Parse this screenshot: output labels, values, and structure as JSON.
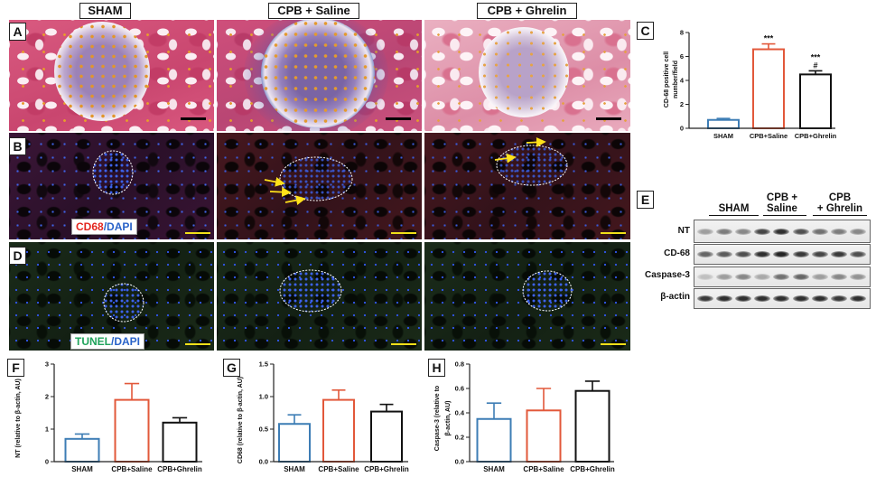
{
  "figure": {
    "columns": [
      "SHAM",
      "CPB + Saline",
      "CPB + Ghrelin"
    ],
    "panel_labels": {
      "a": "A",
      "b": "B",
      "d": "D",
      "e": "E"
    },
    "legend_b": {
      "marker": "CD68",
      "stain": "/DAPI"
    },
    "legend_d": {
      "marker": "TUNEL",
      "stain": "/DAPI"
    }
  },
  "western_blot": {
    "groups": [
      [
        "SHAM"
      ],
      [
        "CPB +",
        "Saline"
      ],
      [
        "CPB",
        "+ Ghrelin"
      ]
    ],
    "rows": [
      "NT",
      "CD-68",
      "Caspase-3",
      "β-actin"
    ]
  },
  "colors": {
    "bars": [
      "#3d7db5",
      "#e2583a",
      "#111111"
    ],
    "cd68": "#e3261f",
    "dapi": "#2a63c9",
    "tunel": "#20a35b"
  },
  "chart_data": [
    {
      "panel": "C",
      "type": "bar",
      "categories": [
        "SHAM",
        "CPB+Saline",
        "CPB+Ghrelin"
      ],
      "values": [
        0.7,
        6.6,
        4.5
      ],
      "errors": [
        0.12,
        0.45,
        0.3
      ],
      "ylabel_lines": [
        "CD-68 positive cell",
        "number/field"
      ],
      "ylim": [
        0,
        8
      ],
      "yticks": [
        0,
        2,
        4,
        6,
        8
      ],
      "ytick_labels": [
        "0",
        "2",
        "4",
        "6",
        "8"
      ],
      "annotations": [
        [],
        [
          "***"
        ],
        [
          "***",
          "#"
        ]
      ],
      "grid": false
    },
    {
      "panel": "F",
      "type": "bar",
      "categories": [
        "SHAM",
        "CPB+Saline",
        "CPB+Ghrelin"
      ],
      "values": [
        0.7,
        1.9,
        1.2
      ],
      "errors": [
        0.15,
        0.5,
        0.15
      ],
      "ylabel_lines": [
        "NT (relative to β-actin, AU)"
      ],
      "ylim": [
        0,
        3
      ],
      "yticks": [
        0,
        1,
        2,
        3
      ],
      "ytick_labels": [
        "0",
        "1",
        "2",
        "3"
      ],
      "grid": false
    },
    {
      "panel": "G",
      "type": "bar",
      "categories": [
        "SHAM",
        "CPB+Saline",
        "CPB+Ghrelin"
      ],
      "values": [
        0.58,
        0.95,
        0.77
      ],
      "errors": [
        0.14,
        0.15,
        0.11
      ],
      "ylabel_lines": [
        "CD68 (relative to β-actin, AU)"
      ],
      "ylim": [
        0,
        1.5
      ],
      "yticks": [
        0,
        0.5,
        1,
        1.5
      ],
      "ytick_labels": [
        "0.0",
        "0.5",
        "1.0",
        "1.5"
      ],
      "grid": false
    },
    {
      "panel": "H",
      "type": "bar",
      "categories": [
        "SHAM",
        "CPB+Saline",
        "CPB+Ghrelin"
      ],
      "values": [
        0.35,
        0.42,
        0.58
      ],
      "errors": [
        0.13,
        0.18,
        0.08
      ],
      "ylabel_lines": [
        "Caspase-3 (relative to",
        "β-actin, AU)"
      ],
      "ylim": [
        0,
        0.8
      ],
      "yticks": [
        0,
        0.2,
        0.4,
        0.6,
        0.8
      ],
      "ytick_labels": [
        "0.0",
        "0.2",
        "0.4",
        "0.6",
        "0.8"
      ],
      "grid": false
    }
  ]
}
